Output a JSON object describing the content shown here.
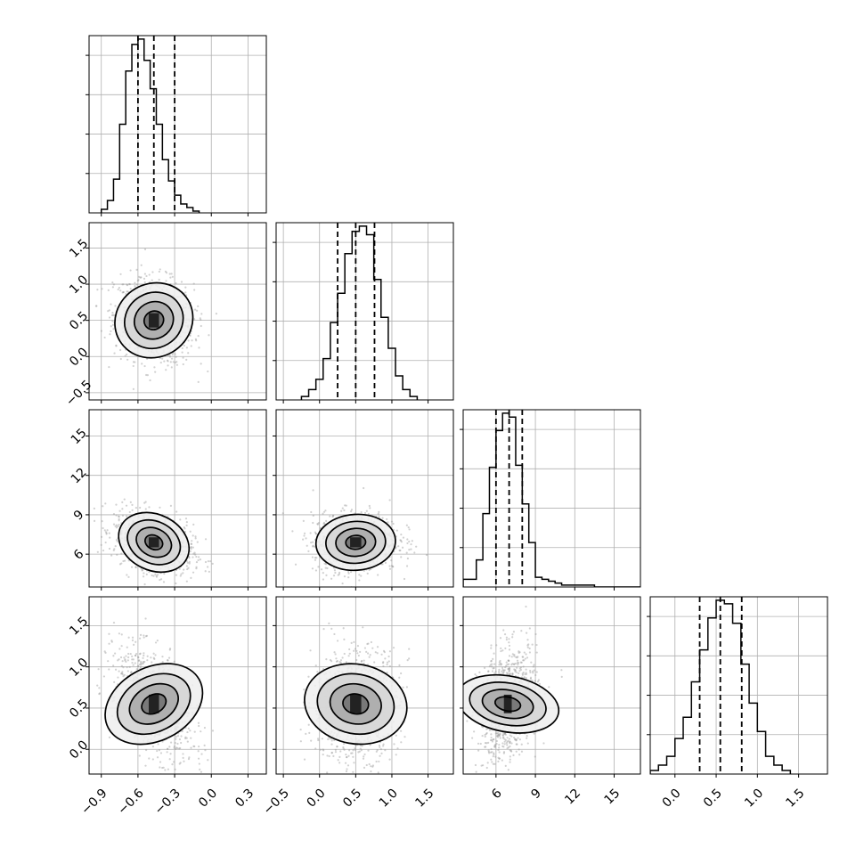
{
  "chart_data": {
    "type": "corner",
    "title": "",
    "grid": true,
    "parameters": [
      {
        "index": 0,
        "range": [
          -1.0,
          0.45
        ],
        "ticks": [
          -0.9,
          -0.6,
          -0.3,
          0.0,
          0.3
        ],
        "tick_labels": [
          "−0.9",
          "−0.6",
          "−0.3",
          "0.0",
          "0.3"
        ],
        "quantiles": [
          -0.6,
          -0.47,
          -0.3
        ],
        "histogram": {
          "bin_start": -0.9,
          "bin_width": 0.05,
          "counts": [
            2,
            7,
            19,
            50,
            80,
            95,
            98,
            86,
            70,
            50,
            30,
            18,
            10,
            5,
            3,
            1
          ]
        }
      },
      {
        "index": 1,
        "range": [
          -0.6,
          1.85
        ],
        "ticks": [
          -0.5,
          0.0,
          0.5,
          1.0,
          1.5
        ],
        "tick_labels": [
          "−0.5",
          "0.0",
          "0.5",
          "1.0",
          "1.5"
        ],
        "quantiles": [
          0.25,
          0.5,
          0.76
        ],
        "histogram": {
          "bin_start": -0.25,
          "bin_width": 0.1,
          "counts": [
            2,
            6,
            12,
            24,
            45,
            62,
            85,
            98,
            101,
            96,
            70,
            48,
            30,
            14,
            6,
            2
          ]
        }
      },
      {
        "index": 2,
        "range": [
          3.5,
          17.0
        ],
        "ticks": [
          6,
          9,
          12,
          15
        ],
        "tick_labels": [
          "6",
          "9",
          "12",
          "15"
        ],
        "quantiles": [
          6.0,
          7.0,
          8.0
        ],
        "histogram": {
          "bin_start": 3.5,
          "bin_width": 0.5,
          "counts": [
            4,
            4,
            14,
            38,
            62,
            81,
            90,
            88,
            63,
            43,
            23,
            5,
            4,
            3,
            2,
            1,
            1,
            1,
            1,
            1,
            0,
            0,
            0,
            0,
            0,
            0,
            0
          ]
        }
      },
      {
        "index": 3,
        "range": [
          -0.3,
          1.85
        ],
        "ticks": [
          0.0,
          0.5,
          1.0,
          1.5
        ],
        "tick_labels": [
          "0.0",
          "0.5",
          "1.0",
          "1.5"
        ],
        "quantiles": [
          0.3,
          0.55,
          0.81
        ],
        "histogram": {
          "bin_start": -0.3,
          "bin_width": 0.1,
          "counts": [
            2,
            5,
            10,
            20,
            32,
            52,
            70,
            88,
            98,
            96,
            85,
            62,
            40,
            24,
            10,
            5,
            2
          ]
        }
      }
    ],
    "pairs": [
      {
        "x": 0,
        "y": 1,
        "center": [
          -0.47,
          0.5
        ],
        "sigma": [
          0.12,
          0.22
        ],
        "rho": -0.15
      },
      {
        "x": 0,
        "y": 2,
        "center": [
          -0.47,
          6.9
        ],
        "sigma": [
          0.12,
          0.85
        ],
        "rho": -0.35
      },
      {
        "x": 1,
        "y": 2,
        "center": [
          0.5,
          6.9
        ],
        "sigma": [
          0.22,
          0.85
        ],
        "rho": 0.05
      },
      {
        "x": 0,
        "y": 3,
        "center": [
          -0.47,
          0.55
        ],
        "sigma": [
          0.12,
          0.25
        ],
        "rho": -0.5
      },
      {
        "x": 1,
        "y": 3,
        "center": [
          0.5,
          0.55
        ],
        "sigma": [
          0.22,
          0.25
        ],
        "rho": 0.1
      },
      {
        "x": 2,
        "y": 3,
        "center": [
          6.9,
          0.55
        ],
        "sigma": [
          0.85,
          0.25
        ],
        "rho": 0.25
      }
    ],
    "contour_levels": [
      "0.5-sigma",
      "1-sigma",
      "1.5-sigma",
      "2-sigma"
    ],
    "colors": {
      "line": "#000000",
      "grid": "#b0b0b0",
      "scatter": "#9a9a9a",
      "density": "#000000"
    }
  }
}
